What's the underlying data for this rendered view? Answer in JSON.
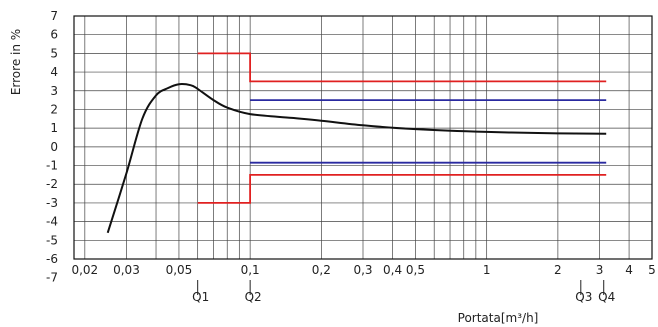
{
  "chart_data": {
    "type": "line",
    "xlabel": "Portata[m³/h]",
    "ylabel": "Errore in %",
    "x_scale": "log",
    "xlim": [
      0.018,
      5.0
    ],
    "ylim": [
      -6,
      7
    ],
    "grid": true,
    "x_tick_labels": [
      {
        "x": 0.02,
        "label": "0,02"
      },
      {
        "x": 0.03,
        "label": "0,03"
      },
      {
        "x": 0.05,
        "label": "0,05"
      },
      {
        "x": 0.1,
        "label": "0,1"
      },
      {
        "x": 0.2,
        "label": "0,2"
      },
      {
        "x": 0.3,
        "label": "0,3"
      },
      {
        "x": 0.4,
        "label": "0,4"
      },
      {
        "x": 0.5,
        "label": "0,5"
      },
      {
        "x": 1,
        "label": "1"
      },
      {
        "x": 2,
        "label": "2"
      },
      {
        "x": 3,
        "label": "3"
      },
      {
        "x": 4,
        "label": "4"
      },
      {
        "x": 5,
        "label": "5"
      }
    ],
    "y_tick_labels": [
      {
        "y": 7,
        "label": "7"
      },
      {
        "y": 6,
        "label": "6"
      },
      {
        "y": 5,
        "label": "5"
      },
      {
        "y": 4,
        "label": "4"
      },
      {
        "y": 3,
        "label": "3"
      },
      {
        "y": 2,
        "label": "2"
      },
      {
        "y": 1,
        "label": "1"
      },
      {
        "y": 0,
        "label": "0"
      },
      {
        "y": -1,
        "label": "-1"
      },
      {
        "y": -2,
        "label": "-2"
      },
      {
        "y": -3,
        "label": "-3"
      },
      {
        "y": -4,
        "label": "-4"
      },
      {
        "y": -5,
        "label": "-5"
      },
      {
        "y": -6,
        "label": "-6"
      },
      {
        "y": -7,
        "label": "-7"
      }
    ],
    "markers": [
      {
        "x": 0.06,
        "label": "Q1"
      },
      {
        "x": 0.1,
        "label": "Q2"
      },
      {
        "x": 2.5,
        "label": "Q3"
      },
      {
        "x": 3.125,
        "label": "Q4"
      }
    ],
    "series": [
      {
        "color": "#111111",
        "x": [
          0.025,
          0.03,
          0.035,
          0.04,
          0.045,
          0.05,
          0.056,
          0.06,
          0.07,
          0.08,
          0.1,
          0.15,
          0.2,
          0.3,
          0.5,
          1,
          2,
          3.2
        ],
        "y": [
          -4.6,
          -1.4,
          1.5,
          2.75,
          3.15,
          3.35,
          3.3,
          3.1,
          2.5,
          2.1,
          1.75,
          1.55,
          1.4,
          1.15,
          0.95,
          0.8,
          0.72,
          0.7
        ]
      },
      {
        "color": "#e02020",
        "x": [
          0.06,
          0.1,
          0.1,
          3.2
        ],
        "y": [
          5,
          5,
          3.5,
          3.5
        ]
      },
      {
        "color": "#e02020",
        "x": [
          0.06,
          0.1,
          0.1,
          3.2
        ],
        "y": [
          -3,
          -3,
          -1.5,
          -1.5
        ]
      },
      {
        "color": "#2a2aa0",
        "x": [
          0.1,
          3.2
        ],
        "y": [
          2.5,
          2.5
        ]
      },
      {
        "color": "#2a2aa0",
        "x": [
          0.1,
          3.2
        ],
        "y": [
          -0.85,
          -0.85
        ]
      }
    ]
  }
}
